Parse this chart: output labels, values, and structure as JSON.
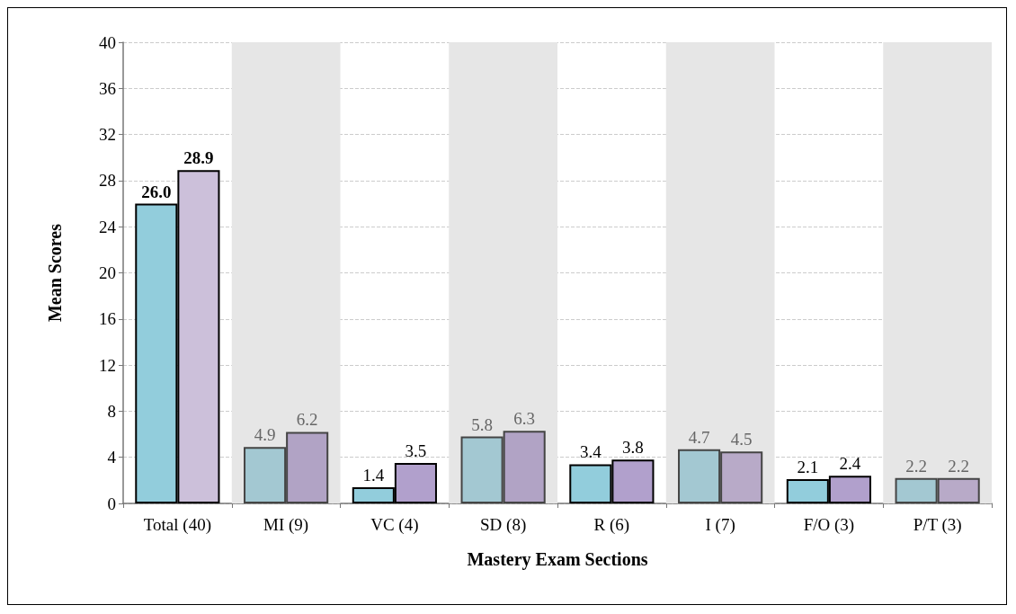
{
  "chart_data": {
    "type": "bar",
    "xlabel": "Mastery Exam Sections",
    "ylabel": "Mean Scores",
    "categories": [
      "Total (40)",
      "MI (9)",
      "VC (4)",
      "SD (8)",
      "R (6)",
      "I (7)",
      "F/O (3)",
      "P/T (3)"
    ],
    "series": [
      {
        "colors": [
          "#92cddc",
          "#a3c8d2",
          "#92cddc",
          "#a3c8d2",
          "#92cddc",
          "#a3c8d2",
          "#92cddc",
          "#a3c8d2"
        ],
        "values": [
          26.0,
          4.9,
          1.4,
          5.8,
          3.4,
          4.7,
          2.1,
          2.2
        ],
        "value_labels": [
          "26.0",
          "4.9",
          "1.4",
          "5.8",
          "3.4",
          "4.7",
          "2.1",
          "2.2"
        ]
      },
      {
        "colors": [
          "#ccc0da",
          "#b1a3c5",
          "#b1a0cc",
          "#b1a3c5",
          "#b1a0cc",
          "#b8aac8",
          "#b1a0cc",
          "#b8aac8"
        ],
        "values": [
          28.9,
          6.2,
          3.5,
          6.3,
          3.8,
          4.5,
          2.4,
          2.2
        ],
        "value_labels": [
          "28.9",
          "6.2",
          "3.5",
          "6.3",
          "3.8",
          "4.5",
          "2.4",
          "2.2"
        ]
      }
    ],
    "ylim": [
      0,
      40
    ],
    "yticks": [
      0,
      4,
      8,
      12,
      16,
      20,
      24,
      28,
      32,
      36,
      40
    ],
    "grid": "y",
    "bands": [
      {
        "axis": "x",
        "from": "MI (9)",
        "to": "MI (9)",
        "color": "#e6e6e6"
      },
      {
        "axis": "x",
        "from": "SD (8)",
        "to": "SD (8)",
        "color": "#e6e6e6"
      },
      {
        "axis": "x",
        "from": "I (7)",
        "to": "I (7)",
        "color": "#e6e6e6"
      },
      {
        "axis": "x",
        "from": "P/T (3)",
        "to": "P/T (3)",
        "color": "#e6e6e6"
      }
    ]
  }
}
